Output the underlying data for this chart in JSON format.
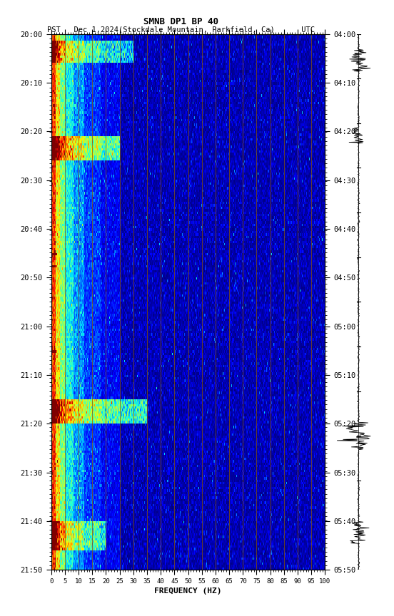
{
  "title1": "SMNB DP1 BP 40",
  "title2": "PST   Dec 1,2024(Stockdale Mountain, Parkfield, Ca)      UTC",
  "xlabel": "FREQUENCY (HZ)",
  "freq_min": 0,
  "freq_max": 100,
  "pst_labels": [
    "20:00",
    "20:10",
    "20:20",
    "20:30",
    "20:40",
    "20:50",
    "21:00",
    "21:10",
    "21:20",
    "21:30",
    "21:40",
    "21:50"
  ],
  "utc_labels": [
    "04:00",
    "04:10",
    "04:20",
    "04:30",
    "04:40",
    "04:50",
    "05:00",
    "05:10",
    "05:20",
    "05:30",
    "05:40",
    "05:50"
  ],
  "freq_ticks": [
    0,
    5,
    10,
    15,
    20,
    25,
    30,
    35,
    40,
    45,
    50,
    55,
    60,
    65,
    70,
    75,
    80,
    85,
    90,
    95,
    100
  ],
  "vert_grid_freqs": [
    5,
    10,
    15,
    20,
    25,
    30,
    35,
    40,
    45,
    50,
    55,
    60,
    65,
    70,
    75,
    80,
    85,
    90,
    95,
    100
  ],
  "n_time": 220,
  "n_freq": 400,
  "fig_width": 5.52,
  "fig_height": 8.64,
  "vmin": 0,
  "vmax": 10,
  "grid_color": "#8B5500",
  "grid_lw": 0.6
}
